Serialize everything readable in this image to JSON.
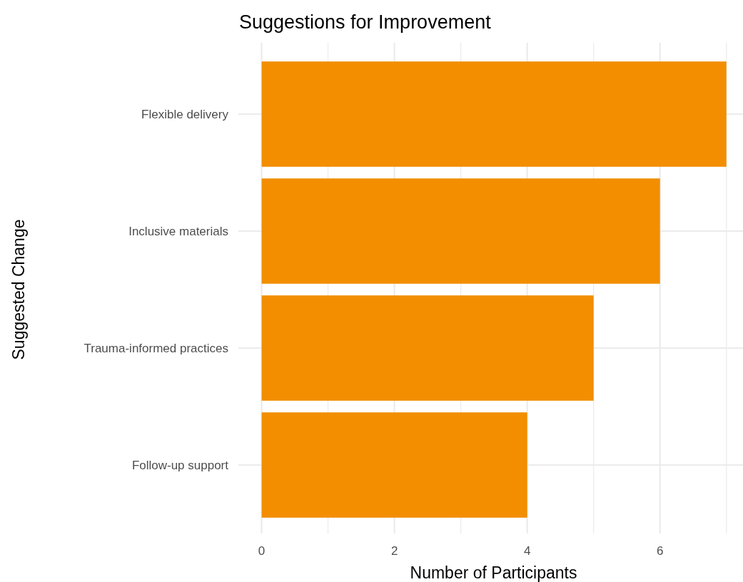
{
  "chart_data": {
    "type": "bar",
    "title": "Suggestions for Improvement",
    "xlabel": "Number of Participants",
    "ylabel": "Suggested Change",
    "orientation": "horizontal",
    "categories": [
      "Flexible delivery",
      "Inclusive materials",
      "Trauma-informed practices",
      "Follow-up support"
    ],
    "values": [
      7,
      6,
      5,
      4
    ],
    "color": "#f28e00",
    "xlim": [
      -0.35,
      7.25
    ],
    "xticks": [
      0,
      {
        "value": 1,
        "label": null
      },
      2,
      {
        "value": 3,
        "label": null
      },
      4,
      {
        "value": 5,
        "label": null
      },
      6,
      {
        "value": 7,
        "label": null
      }
    ],
    "grid": true
  }
}
